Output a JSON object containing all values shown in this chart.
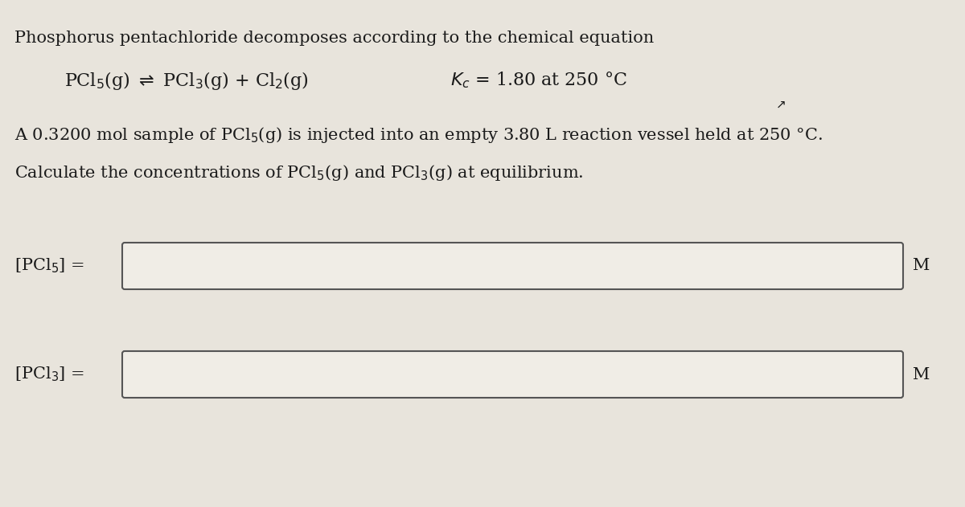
{
  "background_color": "#e8e4dc",
  "text_color": "#1a1a1a",
  "box_color": "#f0ede6",
  "box_edge_color": "#555555",
  "title_line": "Phosphorus pentachloride decomposes according to the chemical equation",
  "kc_val": " = 1.80 at 250 °C",
  "unit": "M",
  "font_size_title": 15,
  "font_size_eq": 16,
  "font_size_label": 15,
  "box1_label": "[PCl$_5$] =",
  "box2_label": "[PCl$_3$] =",
  "sample_text": "A 0.3200 mol sample of PCl$_5$(g) is injected into an empty 3.80 L reaction vessel held at 250 °C.",
  "calc_text": "Calculate the concentrations of PCl$_5$(g) and PCl$_3$(g) at equilibrium.",
  "eq_text": "PCl$_5$(g) $\\rightleftharpoons$ PCl$_3$(g) + Cl$_2$(g)",
  "kc_text": "$K_c$ = 1.80 at 250 °C"
}
